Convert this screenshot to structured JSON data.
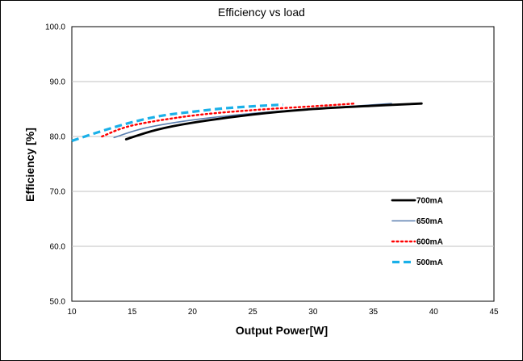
{
  "chart_data": {
    "type": "line",
    "title": "Efficiency vs load",
    "xlabel": "Output Power[W]",
    "ylabel": "Efficiency [%]",
    "xlim": [
      10,
      45
    ],
    "ylim": [
      50,
      100
    ],
    "xticks": [
      10,
      15,
      20,
      25,
      30,
      35,
      40,
      45
    ],
    "xtick_labels": [
      "10",
      "15",
      "20",
      "25",
      "30",
      "35",
      "40",
      "45"
    ],
    "yticks": [
      50,
      60,
      70,
      80,
      90,
      100
    ],
    "ytick_labels": [
      "50.0",
      "60.0",
      "70.0",
      "80.0",
      "90.0",
      "100.0"
    ],
    "grid": "horizontal",
    "legend_position": "right",
    "series": [
      {
        "name": "700mA",
        "color": "#000000",
        "style": "solid-thick",
        "points": [
          [
            14.5,
            79.5
          ],
          [
            17,
            81.2
          ],
          [
            20,
            82.5
          ],
          [
            25,
            84.0
          ],
          [
            30,
            85.0
          ],
          [
            35,
            85.6
          ],
          [
            39,
            86.0
          ]
        ]
      },
      {
        "name": "650mA",
        "color": "#5b7fb0",
        "style": "solid-thin",
        "points": [
          [
            13.5,
            79.8
          ],
          [
            16,
            81.5
          ],
          [
            20,
            83.0
          ],
          [
            25,
            84.2
          ],
          [
            30,
            85.0
          ],
          [
            36.5,
            86.0
          ]
        ]
      },
      {
        "name": "600mA",
        "color": "#ff0000",
        "style": "dotted",
        "points": [
          [
            12.5,
            80.0
          ],
          [
            15,
            82.0
          ],
          [
            20,
            83.8
          ],
          [
            25,
            84.8
          ],
          [
            30,
            85.5
          ],
          [
            33.5,
            86.0
          ]
        ]
      },
      {
        "name": "500mA",
        "color": "#1ab0e8",
        "style": "dashed",
        "points": [
          [
            10,
            79.2
          ],
          [
            12.5,
            81.0
          ],
          [
            15,
            82.6
          ],
          [
            17.5,
            83.8
          ],
          [
            20,
            84.5
          ],
          [
            22.5,
            85.1
          ],
          [
            25,
            85.5
          ],
          [
            27.5,
            85.8
          ]
        ]
      }
    ]
  }
}
